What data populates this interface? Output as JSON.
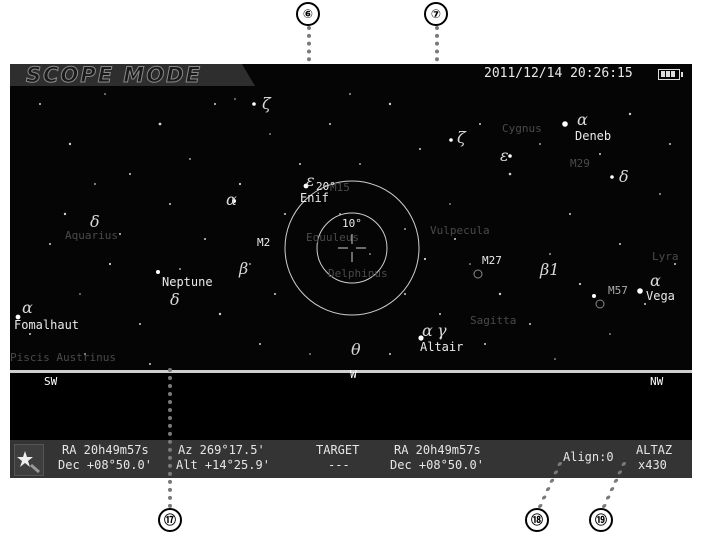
{
  "callouts": [
    "⑥",
    "⑦",
    "⑰",
    "⑱",
    "⑲"
  ],
  "header": {
    "mode": "SCOPE MODE",
    "datetime": "2011/12/14 20:26:15",
    "battery_icon": "battery-full-icon"
  },
  "sky": {
    "objects": {
      "deneb": "Deneb",
      "enif": "Enif",
      "neptune": "Neptune",
      "fomalhaut": "Fomalhaut",
      "altair": "Altair",
      "vega": "Vega",
      "m2": "M2",
      "m27": "M27",
      "m57": "M57",
      "m15": "M15",
      "m29": "M29"
    },
    "constellations": {
      "cygnus": "Cygnus",
      "aquarius": "Aquarius",
      "equuleus": "Equuleus",
      "delphinus": "Delphinus",
      "vulpecula": "Vulpecula",
      "lyra": "Lyra",
      "sagitta": "Sagitta",
      "piscis_austrinus": "Piscis Austrinus"
    },
    "greek": {
      "zeta1": "ζ",
      "zeta2": "ζ",
      "alpha_deneb": "α",
      "epsilon_cyg": "ε",
      "delta_cyg": "δ",
      "epsilon_enif": "ε",
      "alpha_aqr": "α",
      "delta_aqr": "δ",
      "beta_aqr": "β",
      "delta_cap": "δ",
      "alpha_fom": "α",
      "beta1": "β1",
      "alpha_vega": "α",
      "alpha_altair": "α",
      "gamma_altair": "γ",
      "theta": "θ"
    },
    "rings": {
      "outer": "20°",
      "inner": "10°"
    },
    "directions": {
      "sw": "SW",
      "w": "W",
      "nw": "NW"
    }
  },
  "status": {
    "ra": "RA  20h49m57s",
    "dec": "Dec +08°50.0'",
    "az": "Az 269°17.5'",
    "alt": "Alt +14°25.9'",
    "target_label": "TARGET",
    "target_value": "---",
    "target_ra": "RA  20h49m57s",
    "target_dec": "Dec +08°50.0'",
    "align": "Align:0",
    "mount": "ALTAZ",
    "magnification": "x430"
  }
}
